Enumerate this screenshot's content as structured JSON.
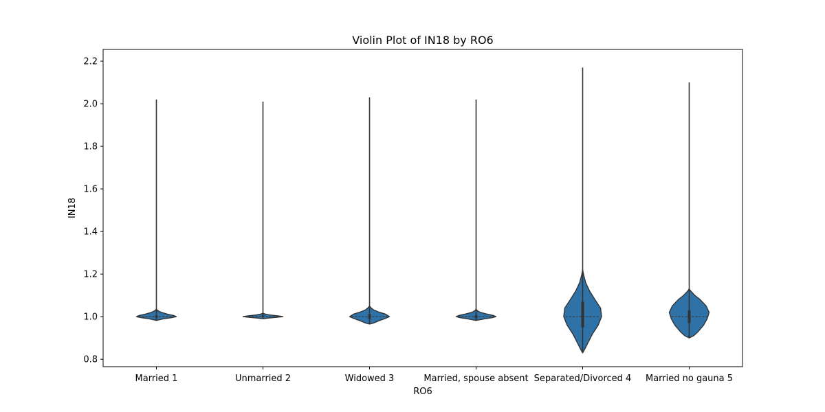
{
  "chart_data": {
    "type": "violin",
    "title": "Violin Plot of IN18 by RO6",
    "xlabel": "RO6",
    "ylabel": "IN18",
    "ylim": [
      0.765,
      2.255
    ],
    "yticks": [
      "0.8",
      "1.0",
      "1.2",
      "1.4",
      "1.6",
      "1.8",
      "2.0",
      "2.2"
    ],
    "grid": false,
    "fill_color": "#2f72a8",
    "line_color": "#333333",
    "categories": [
      "Married 1",
      "Unmarried 2",
      "Widowed 3",
      "Married, spouse absent",
      "Separated/Divorced 4",
      "Married no gauna 5"
    ],
    "violins": [
      {
        "category": "Married 1",
        "min": 0.982,
        "max": 2.02,
        "median": 1.0,
        "q1": 0.995,
        "q3": 1.005,
        "profile": [
          [
            0.982,
            0.0
          ],
          [
            0.985,
            0.12
          ],
          [
            0.99,
            0.38
          ],
          [
            0.995,
            0.75
          ],
          [
            1.0,
            1.0
          ],
          [
            1.005,
            0.88
          ],
          [
            1.012,
            0.55
          ],
          [
            1.02,
            0.25
          ],
          [
            1.028,
            0.08
          ],
          [
            1.035,
            0.0
          ]
        ]
      },
      {
        "category": "Unmarried 2",
        "min": 0.99,
        "max": 2.01,
        "median": 1.0,
        "q1": 0.998,
        "q3": 1.004,
        "profile": [
          [
            0.99,
            0.0
          ],
          [
            0.993,
            0.25
          ],
          [
            0.997,
            0.7
          ],
          [
            1.0,
            1.0
          ],
          [
            1.004,
            0.75
          ],
          [
            1.008,
            0.35
          ],
          [
            1.012,
            0.12
          ],
          [
            1.016,
            0.0
          ]
        ]
      },
      {
        "category": "Widowed 3",
        "min": 0.965,
        "max": 2.03,
        "median": 1.0,
        "q1": 0.99,
        "q3": 1.012,
        "profile": [
          [
            0.965,
            0.0
          ],
          [
            0.97,
            0.2
          ],
          [
            0.98,
            0.45
          ],
          [
            0.99,
            0.75
          ],
          [
            1.0,
            1.0
          ],
          [
            1.012,
            0.8
          ],
          [
            1.022,
            0.45
          ],
          [
            1.032,
            0.2
          ],
          [
            1.042,
            0.07
          ],
          [
            1.05,
            0.0
          ]
        ]
      },
      {
        "category": "Married, spouse absent",
        "min": 0.982,
        "max": 2.02,
        "median": 1.0,
        "q1": 0.993,
        "q3": 1.006,
        "profile": [
          [
            0.982,
            0.0
          ],
          [
            0.985,
            0.15
          ],
          [
            0.99,
            0.45
          ],
          [
            0.995,
            0.8
          ],
          [
            1.0,
            1.0
          ],
          [
            1.006,
            0.85
          ],
          [
            1.013,
            0.5
          ],
          [
            1.02,
            0.22
          ],
          [
            1.028,
            0.06
          ],
          [
            1.035,
            0.0
          ]
        ]
      },
      {
        "category": "Separated/Divorced 4",
        "min": 0.83,
        "max": 2.17,
        "median": 1.0,
        "q1": 0.95,
        "q3": 1.07,
        "profile": [
          [
            0.83,
            0.0
          ],
          [
            0.85,
            0.12
          ],
          [
            0.88,
            0.28
          ],
          [
            0.92,
            0.5
          ],
          [
            0.96,
            0.78
          ],
          [
            1.0,
            0.95
          ],
          [
            1.04,
            0.9
          ],
          [
            1.08,
            0.62
          ],
          [
            1.12,
            0.35
          ],
          [
            1.16,
            0.15
          ],
          [
            1.2,
            0.04
          ],
          [
            1.22,
            0.0
          ]
        ]
      },
      {
        "category": "Married no gauna 5",
        "min": 0.9,
        "max": 2.1,
        "median": 1.0,
        "q1": 0.97,
        "q3": 1.03,
        "profile": [
          [
            0.9,
            0.0
          ],
          [
            0.91,
            0.22
          ],
          [
            0.93,
            0.45
          ],
          [
            0.96,
            0.72
          ],
          [
            0.99,
            0.9
          ],
          [
            1.02,
            1.0
          ],
          [
            1.05,
            0.85
          ],
          [
            1.08,
            0.55
          ],
          [
            1.1,
            0.28
          ],
          [
            1.12,
            0.08
          ],
          [
            1.13,
            0.0
          ]
        ]
      }
    ]
  }
}
